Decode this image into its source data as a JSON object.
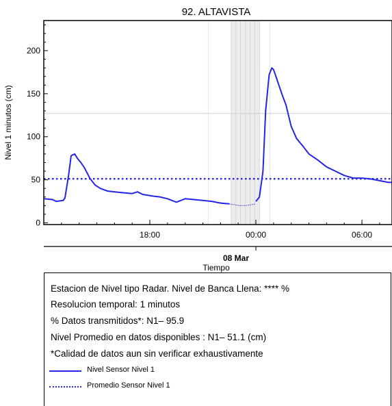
{
  "chart_data": {
    "type": "line",
    "title": "92. ALTAVISTA",
    "xlabel": "Tiempo",
    "ylabel": "Nivel 1 minutos (cm)",
    "ylim": [
      -2,
      235
    ],
    "xlim": [
      12.0,
      31.7
    ],
    "x_unit": "hours since 2024-03-07 00:00 (07 Mar 12:00 to 08 Mar 07:42)",
    "yticks": [
      0,
      50,
      100,
      150,
      200
    ],
    "xticks": [
      {
        "x": 18,
        "label": "18:00"
      },
      {
        "x": 24,
        "label": "00:00"
      },
      {
        "x": 30,
        "label": "06:00"
      }
    ],
    "date_label": "08 Mar",
    "reference_line_y": 127,
    "gray_band": [
      22.6,
      24.2
    ],
    "series": [
      {
        "name": "Nivel Sensor Nivel 1",
        "color": "#2424e6",
        "style": "solid",
        "x": [
          12.0,
          12.5,
          12.7,
          13.1,
          13.2,
          13.4,
          13.55,
          13.75,
          13.9,
          14.1,
          14.3,
          14.6,
          14.9,
          15.2,
          15.6,
          16.0,
          16.5,
          17.0,
          17.3,
          17.6,
          17.9,
          18.2,
          18.6,
          19.0,
          19.5,
          20.0,
          20.5,
          21.0,
          21.5,
          22.0,
          22.5
        ],
        "y": [
          28,
          27,
          25,
          26,
          29,
          55,
          78,
          80,
          75,
          70,
          64,
          52,
          44,
          40,
          37,
          36,
          35,
          34,
          36,
          33,
          32,
          31,
          30,
          28,
          24,
          28,
          27,
          26,
          25,
          23,
          22
        ]
      },
      {
        "name": "",
        "color": "#2424e6",
        "style": "dotted-thin",
        "x": [
          22.5,
          22.8,
          23.1,
          23.4,
          23.7,
          24.0
        ],
        "y": [
          22,
          21,
          20,
          20,
          21,
          22
        ]
      },
      {
        "name": "",
        "color": "#2424e6",
        "style": "solid",
        "x": [
          24.0,
          24.2,
          24.4,
          24.55,
          24.75,
          24.9,
          25.0,
          25.1,
          25.3,
          25.5,
          25.7,
          26.0,
          26.3,
          26.7,
          27.0,
          27.5,
          28.0,
          28.5,
          29.0,
          29.5,
          30.0,
          30.5,
          31.0,
          31.5,
          31.7
        ],
        "y": [
          25,
          30,
          60,
          130,
          172,
          180,
          178,
          172,
          160,
          148,
          137,
          112,
          98,
          88,
          80,
          73,
          65,
          60,
          55,
          52,
          52,
          51,
          49,
          47,
          47
        ]
      },
      {
        "name": "Promedio Sensor Nivel 1",
        "color": "#2424e6",
        "style": "dotted",
        "x": [
          12.0,
          31.7
        ],
        "y": [
          51.1,
          51.1
        ]
      }
    ]
  },
  "info": {
    "line1": "Estacion de Nivel tipo Radar. Nivel de Banca Llena: **** %",
    "line2": "Resolucion temporal: 1 minutos",
    "line3": "% Datos transmitidos*: N1– 95.9",
    "line4": "Nivel Promedio en datos disponibles : N1– 51.1 (cm)",
    "line5": "*Calidad de datos aun sin verificar exhaustivamente",
    "legend": [
      {
        "label": "Nivel Sensor Nivel 1",
        "color": "#2424e6",
        "style": "solid"
      },
      {
        "label": "Promedio Sensor Nivel 1",
        "color": "#2424e6",
        "style": "dotted"
      }
    ]
  }
}
